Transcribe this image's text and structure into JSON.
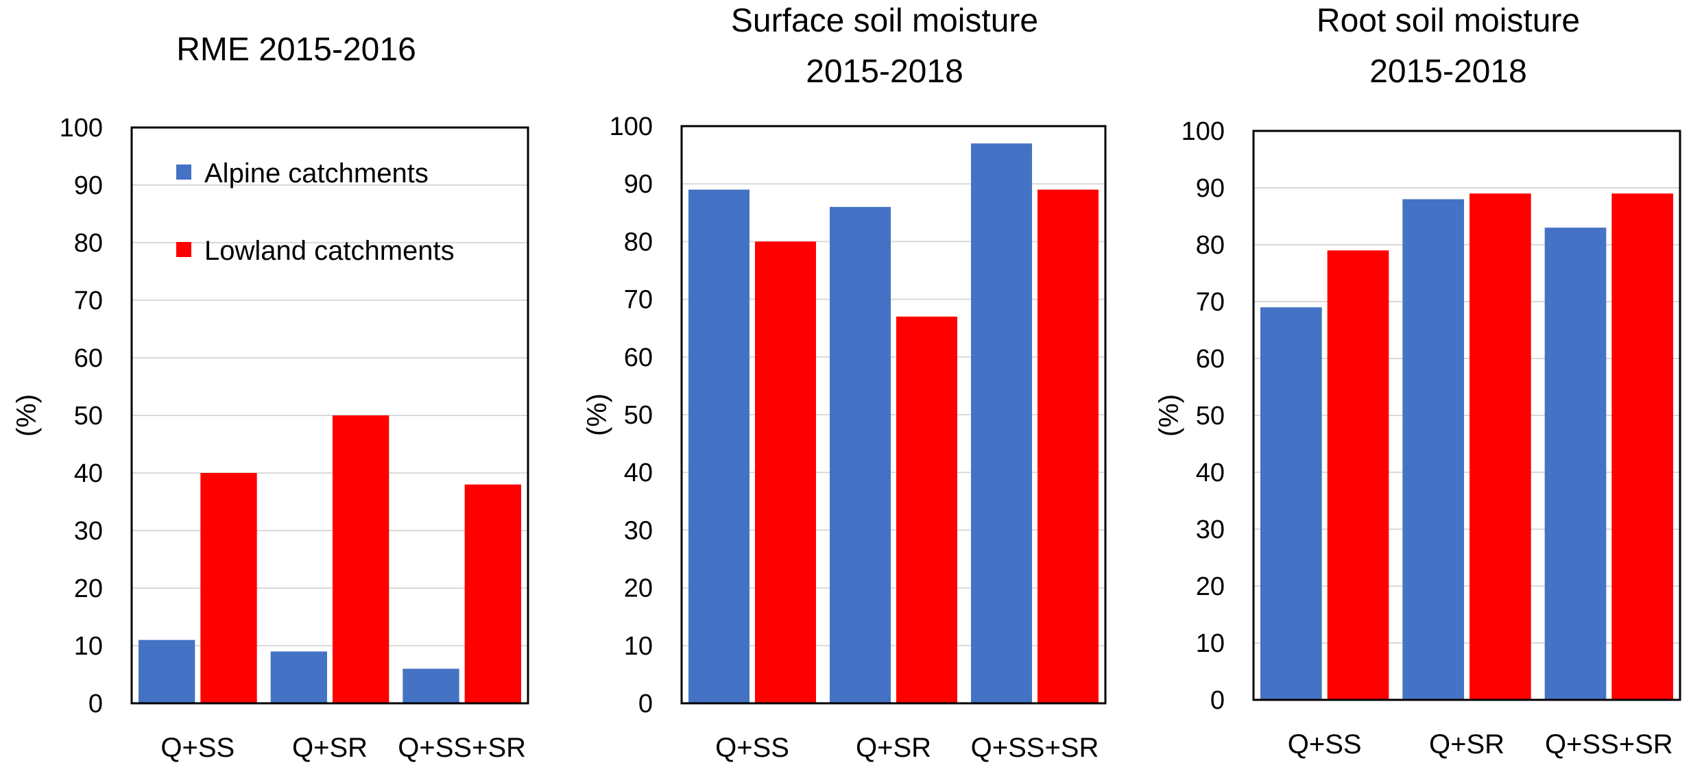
{
  "chart_data": [
    {
      "type": "bar",
      "title_lines": [
        "RME 2015-2016"
      ],
      "ylabel": "(%)",
      "ylim": [
        0,
        100
      ],
      "yticks": [
        "0",
        "10",
        "20",
        "30",
        "40",
        "50",
        "60",
        "70",
        "80",
        "90",
        "100"
      ],
      "categories": [
        "Q+SS",
        "Q+SR",
        "Q+SS+SR"
      ],
      "legend": "top-left",
      "series": [
        {
          "name": "Alpine catchments",
          "color": "#4472C4",
          "values": [
            11,
            9,
            6
          ]
        },
        {
          "name": "Lowland catchments",
          "color": "#FF0000",
          "values": [
            40,
            50,
            38
          ]
        }
      ]
    },
    {
      "type": "bar",
      "title_lines": [
        "Surface soil moisture",
        "2015-2018"
      ],
      "ylabel": "(%)",
      "ylim": [
        0,
        100
      ],
      "yticks": [
        "0",
        "10",
        "20",
        "30",
        "40",
        "50",
        "60",
        "70",
        "80",
        "90",
        "100"
      ],
      "categories": [
        "Q+SS",
        "Q+SR",
        "Q+SS+SR"
      ],
      "series": [
        {
          "color": "#4472C4",
          "values": [
            89,
            86,
            97
          ]
        },
        {
          "color": "#FF0000",
          "values": [
            80,
            67,
            89
          ]
        }
      ]
    },
    {
      "type": "bar",
      "title_lines": [
        "Root soil moisture",
        "2015-2018"
      ],
      "ylabel": "(%)",
      "ylim": [
        0,
        100
      ],
      "yticks": [
        "0",
        "10",
        "20",
        "30",
        "40",
        "50",
        "60",
        "70",
        "80",
        "90",
        "100"
      ],
      "categories": [
        "Q+SS",
        "Q+SR",
        "Q+SS+SR"
      ],
      "series": [
        {
          "color": "#4472C4",
          "values": [
            69,
            88,
            83
          ]
        },
        {
          "color": "#FF0000",
          "values": [
            79,
            89,
            89
          ]
        }
      ]
    }
  ]
}
